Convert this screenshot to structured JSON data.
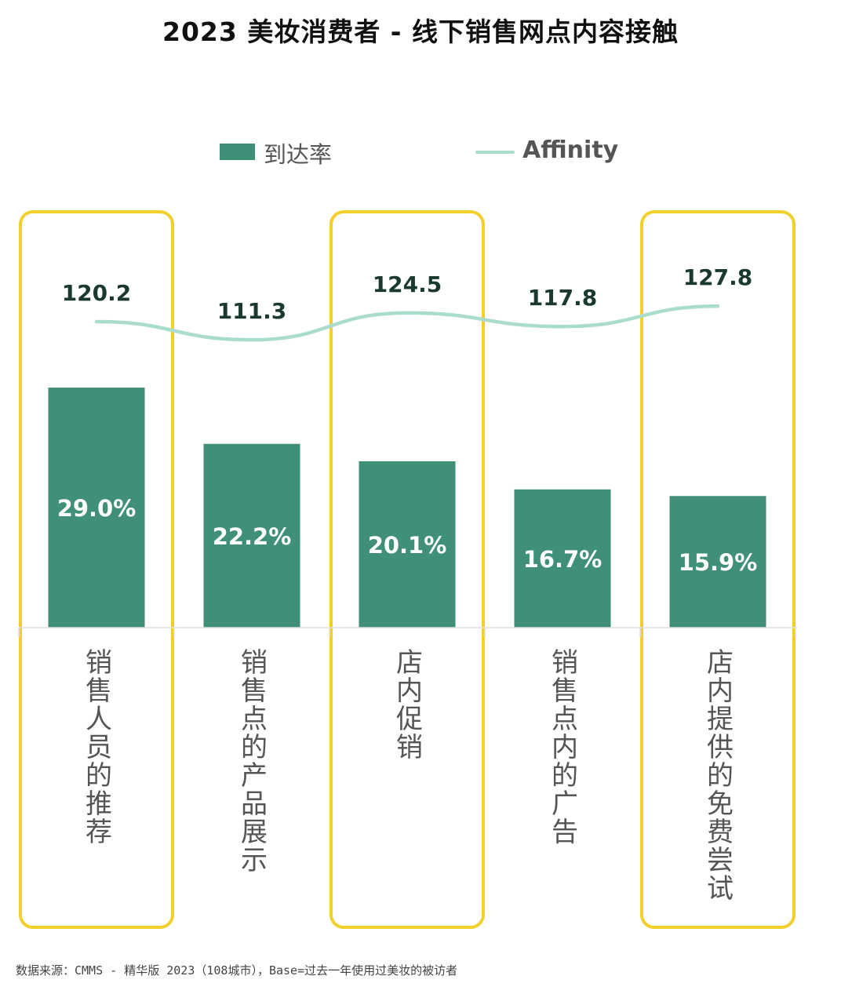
{
  "title": "2023 美妆消费者 - 线下销售网点内容接触",
  "legend": {
    "bar_label": "到达率",
    "line_label": "Affinity"
  },
  "colors": {
    "bar": "#3f8f79",
    "line": "#a9dccd",
    "highlight": "#f2cf2b",
    "axis": "#dddddd",
    "category_text": "#555555",
    "line_label_text": "#1a3a2e"
  },
  "chart_data": {
    "type": "bar",
    "categories": [
      "销售人员的推荐",
      "销售点的产品展示",
      "店内促销",
      "销售点内的广告",
      "店内提供的免费尝试"
    ],
    "series": [
      {
        "name": "到达率",
        "type": "bar",
        "values": [
          29.0,
          22.2,
          20.1,
          16.7,
          15.9
        ],
        "value_labels": [
          "29.0%",
          "22.2%",
          "20.1%",
          "16.7%",
          "15.9%"
        ]
      },
      {
        "name": "Affinity",
        "type": "line",
        "values": [
          120.2,
          111.3,
          124.5,
          117.8,
          127.8
        ],
        "value_labels": [
          "120.2",
          "111.3",
          "124.5",
          "117.8",
          "127.8"
        ]
      }
    ],
    "highlighted_categories": [
      "销售人员的推荐",
      "店内促销",
      "店内提供的免费尝试"
    ],
    "legend_position": "top-center",
    "grid": false
  },
  "source": "数据来源：CMMS - 精华版 2023（108城市），Base=过去一年使用过美妆的被访者"
}
